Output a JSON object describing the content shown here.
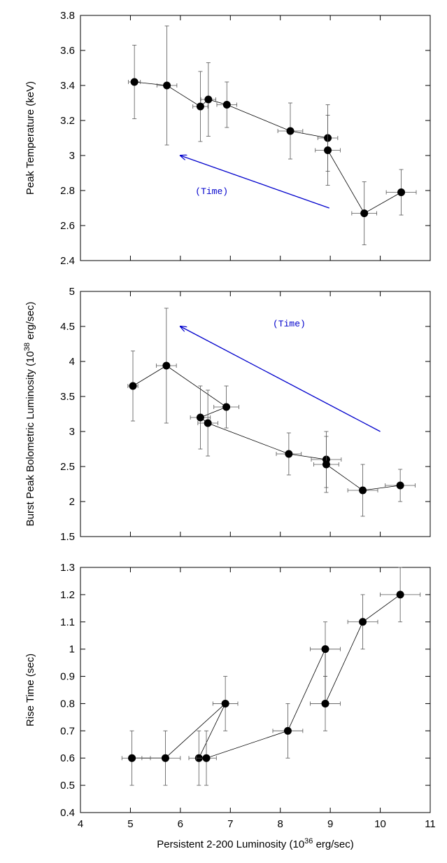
{
  "chart_data": [
    {
      "type": "scatter",
      "ylabel": "Peak Temperature (keV)",
      "ylim": [
        2.4,
        3.8
      ],
      "xlim": [
        4,
        11
      ],
      "yticks": [
        "2.4",
        "2.6",
        "2.8",
        "3",
        "3.2",
        "3.4",
        "3.6",
        "3.8"
      ],
      "show_x_tick_labels": false,
      "grid": false,
      "connected": true,
      "points": [
        {
          "x": 5.08,
          "y": 3.42,
          "xerr": 0.12,
          "yerr": 0.21
        },
        {
          "x": 5.73,
          "y": 3.4,
          "xerr": 0.2,
          "yerr": 0.34
        },
        {
          "x": 6.4,
          "y": 3.28,
          "xerr": 0.15,
          "yerr": 0.2
        },
        {
          "x": 6.56,
          "y": 3.32,
          "xerr": 0.15,
          "yerr": 0.21
        },
        {
          "x": 6.93,
          "y": 3.29,
          "xerr": 0.2,
          "yerr": 0.13
        },
        {
          "x": 8.2,
          "y": 3.14,
          "xerr": 0.25,
          "yerr": 0.16
        },
        {
          "x": 8.95,
          "y": 3.1,
          "xerr": 0.2,
          "yerr": 0.19
        },
        {
          "x": 8.95,
          "y": 3.03,
          "xerr": 0.25,
          "yerr": 0.2
        },
        {
          "x": 9.68,
          "y": 2.67,
          "xerr": 0.25,
          "yerr": 0.18
        },
        {
          "x": 10.42,
          "y": 2.79,
          "xerr": 0.3,
          "yerr": 0.13
        }
      ],
      "annotation": {
        "text": "(Time)",
        "x": 6.3,
        "y": 2.78
      },
      "arrow": {
        "from": [
          8.98,
          2.7
        ],
        "to": [
          6.0,
          3.0
        ],
        "color": "#0000cc"
      }
    },
    {
      "type": "scatter",
      "ylabel": "Burst Peak Bolometric Luminosity (10",
      "ylabel_sup": "38",
      "ylabel_suffix": " erg/sec)",
      "ylim": [
        1.5,
        5.0
      ],
      "xlim": [
        4,
        11
      ],
      "yticks": [
        "1.5",
        "2",
        "2.5",
        "3",
        "3.5",
        "4",
        "4.5",
        "5"
      ],
      "show_x_tick_labels": false,
      "grid": false,
      "connected": true,
      "points": [
        {
          "x": 5.05,
          "y": 3.65,
          "xerr": 0.1,
          "yerr": 0.5
        },
        {
          "x": 5.72,
          "y": 3.94,
          "xerr": 0.2,
          "yerr": 0.82
        },
        {
          "x": 6.92,
          "y": 3.35,
          "xerr": 0.25,
          "yerr": 0.3
        },
        {
          "x": 6.4,
          "y": 3.2,
          "xerr": 0.2,
          "yerr": 0.45
        },
        {
          "x": 6.55,
          "y": 3.12,
          "xerr": 0.2,
          "yerr": 0.47
        },
        {
          "x": 8.17,
          "y": 2.68,
          "xerr": 0.25,
          "yerr": 0.3
        },
        {
          "x": 8.92,
          "y": 2.6,
          "xerr": 0.3,
          "yerr": 0.4
        },
        {
          "x": 8.92,
          "y": 2.53,
          "xerr": 0.25,
          "yerr": 0.4
        },
        {
          "x": 9.65,
          "y": 2.16,
          "xerr": 0.3,
          "yerr": 0.37
        },
        {
          "x": 10.4,
          "y": 2.23,
          "xerr": 0.3,
          "yerr": 0.23
        }
      ],
      "annotation": {
        "text": "(Time)",
        "x": 7.85,
        "y": 4.5
      },
      "arrow": {
        "from": [
          10.0,
          3.0
        ],
        "to": [
          6.0,
          4.5
        ],
        "color": "#0000cc"
      }
    },
    {
      "type": "scatter",
      "ylabel": "Rise Time (sec)",
      "xlabel": "Persistent 2-200 Luminosity (10",
      "xlabel_sup": "36",
      "xlabel_suffix": " erg/sec)",
      "ylim": [
        0.4,
        1.3
      ],
      "xlim": [
        4,
        11
      ],
      "yticks": [
        "0.4",
        "0.5",
        "0.6",
        "0.7",
        "0.8",
        "0.9",
        "1",
        "1.1",
        "1.2",
        "1.3"
      ],
      "xticks": [
        "4",
        "5",
        "6",
        "7",
        "8",
        "9",
        "10",
        "11"
      ],
      "show_x_tick_labels": true,
      "grid": false,
      "connected": true,
      "points": [
        {
          "x": 5.03,
          "y": 0.6,
          "xerr": 0.2,
          "yerr": 0.1
        },
        {
          "x": 5.7,
          "y": 0.6,
          "xerr": 0.3,
          "yerr": 0.1
        },
        {
          "x": 6.9,
          "y": 0.8,
          "xerr": 0.25,
          "yerr": 0.1
        },
        {
          "x": 6.37,
          "y": 0.6,
          "xerr": 0.2,
          "yerr": 0.1
        },
        {
          "x": 6.52,
          "y": 0.6,
          "xerr": 0.2,
          "yerr": 0.1
        },
        {
          "x": 8.15,
          "y": 0.7,
          "xerr": 0.3,
          "yerr": 0.1
        },
        {
          "x": 8.9,
          "y": 1.0,
          "xerr": 0.3,
          "yerr": 0.1
        },
        {
          "x": 8.9,
          "y": 0.8,
          "xerr": 0.3,
          "yerr": 0.1
        },
        {
          "x": 9.65,
          "y": 1.1,
          "xerr": 0.3,
          "yerr": 0.1
        },
        {
          "x": 10.4,
          "y": 1.2,
          "xerr": 0.4,
          "yerr": 0.1
        }
      ]
    }
  ]
}
